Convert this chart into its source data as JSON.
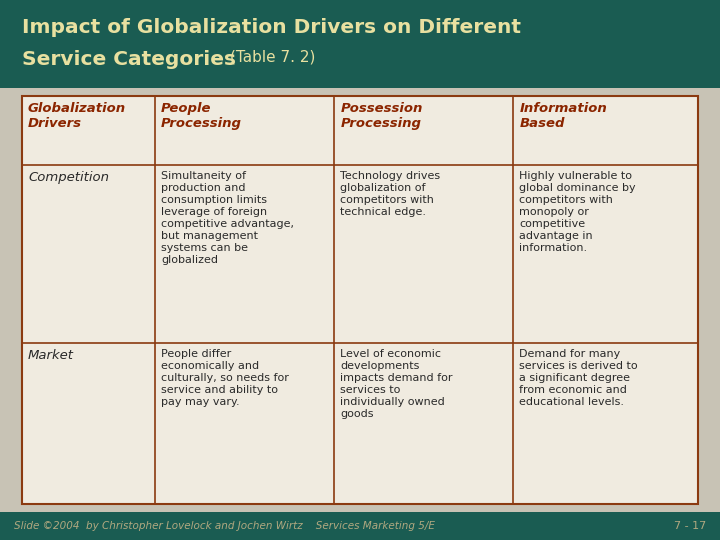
{
  "title_bg": "#1a5c52",
  "title_text_color": "#e8e0a0",
  "outer_bg": "#c8c3b5",
  "table_bg": "#f0ebe0",
  "border_color": "#8b3a10",
  "header_text_color": "#8b2500",
  "cell_text_color": "#2a2a2a",
  "row_label_color": "#2a2a2a",
  "footer_bg": "#1a5c52",
  "footer_text_color": "#b0a880",
  "footer_left": "Slide ©2004  by Christopher Lovelock and Jochen Wirtz    Services Marketing 5/E",
  "footer_right": "7 - 17",
  "col_headers": [
    "Globalization\nDrivers",
    "People\nProcessing",
    "Possession\nProcessing",
    "Information\nBased"
  ],
  "row_labels": [
    "Competition",
    "Market"
  ],
  "cells": [
    [
      "Simultaneity of\nproduction and\nconsumption limits\nleverage of foreign\ncompetitive advantage,\nbut management\nsystems can be\nglobalized",
      "Technology drives\nglobalization of\ncompetitors with\ntechnical edge.",
      "Highly vulnerable to\nglobal dominance by\ncompetitors with\nmonopoly or\ncompetitive\nadvantage in\ninformation."
    ],
    [
      "People differ\neconomically and\nculturally, so needs for\nservice and ability to\npay may vary.",
      "Level of economic\ndevelopments\nimpacts demand for\nservices to\nindividually owned\ngoods",
      "Demand for many\nservices is derived to\na significant degree\nfrom economic and\neducational levels."
    ]
  ]
}
